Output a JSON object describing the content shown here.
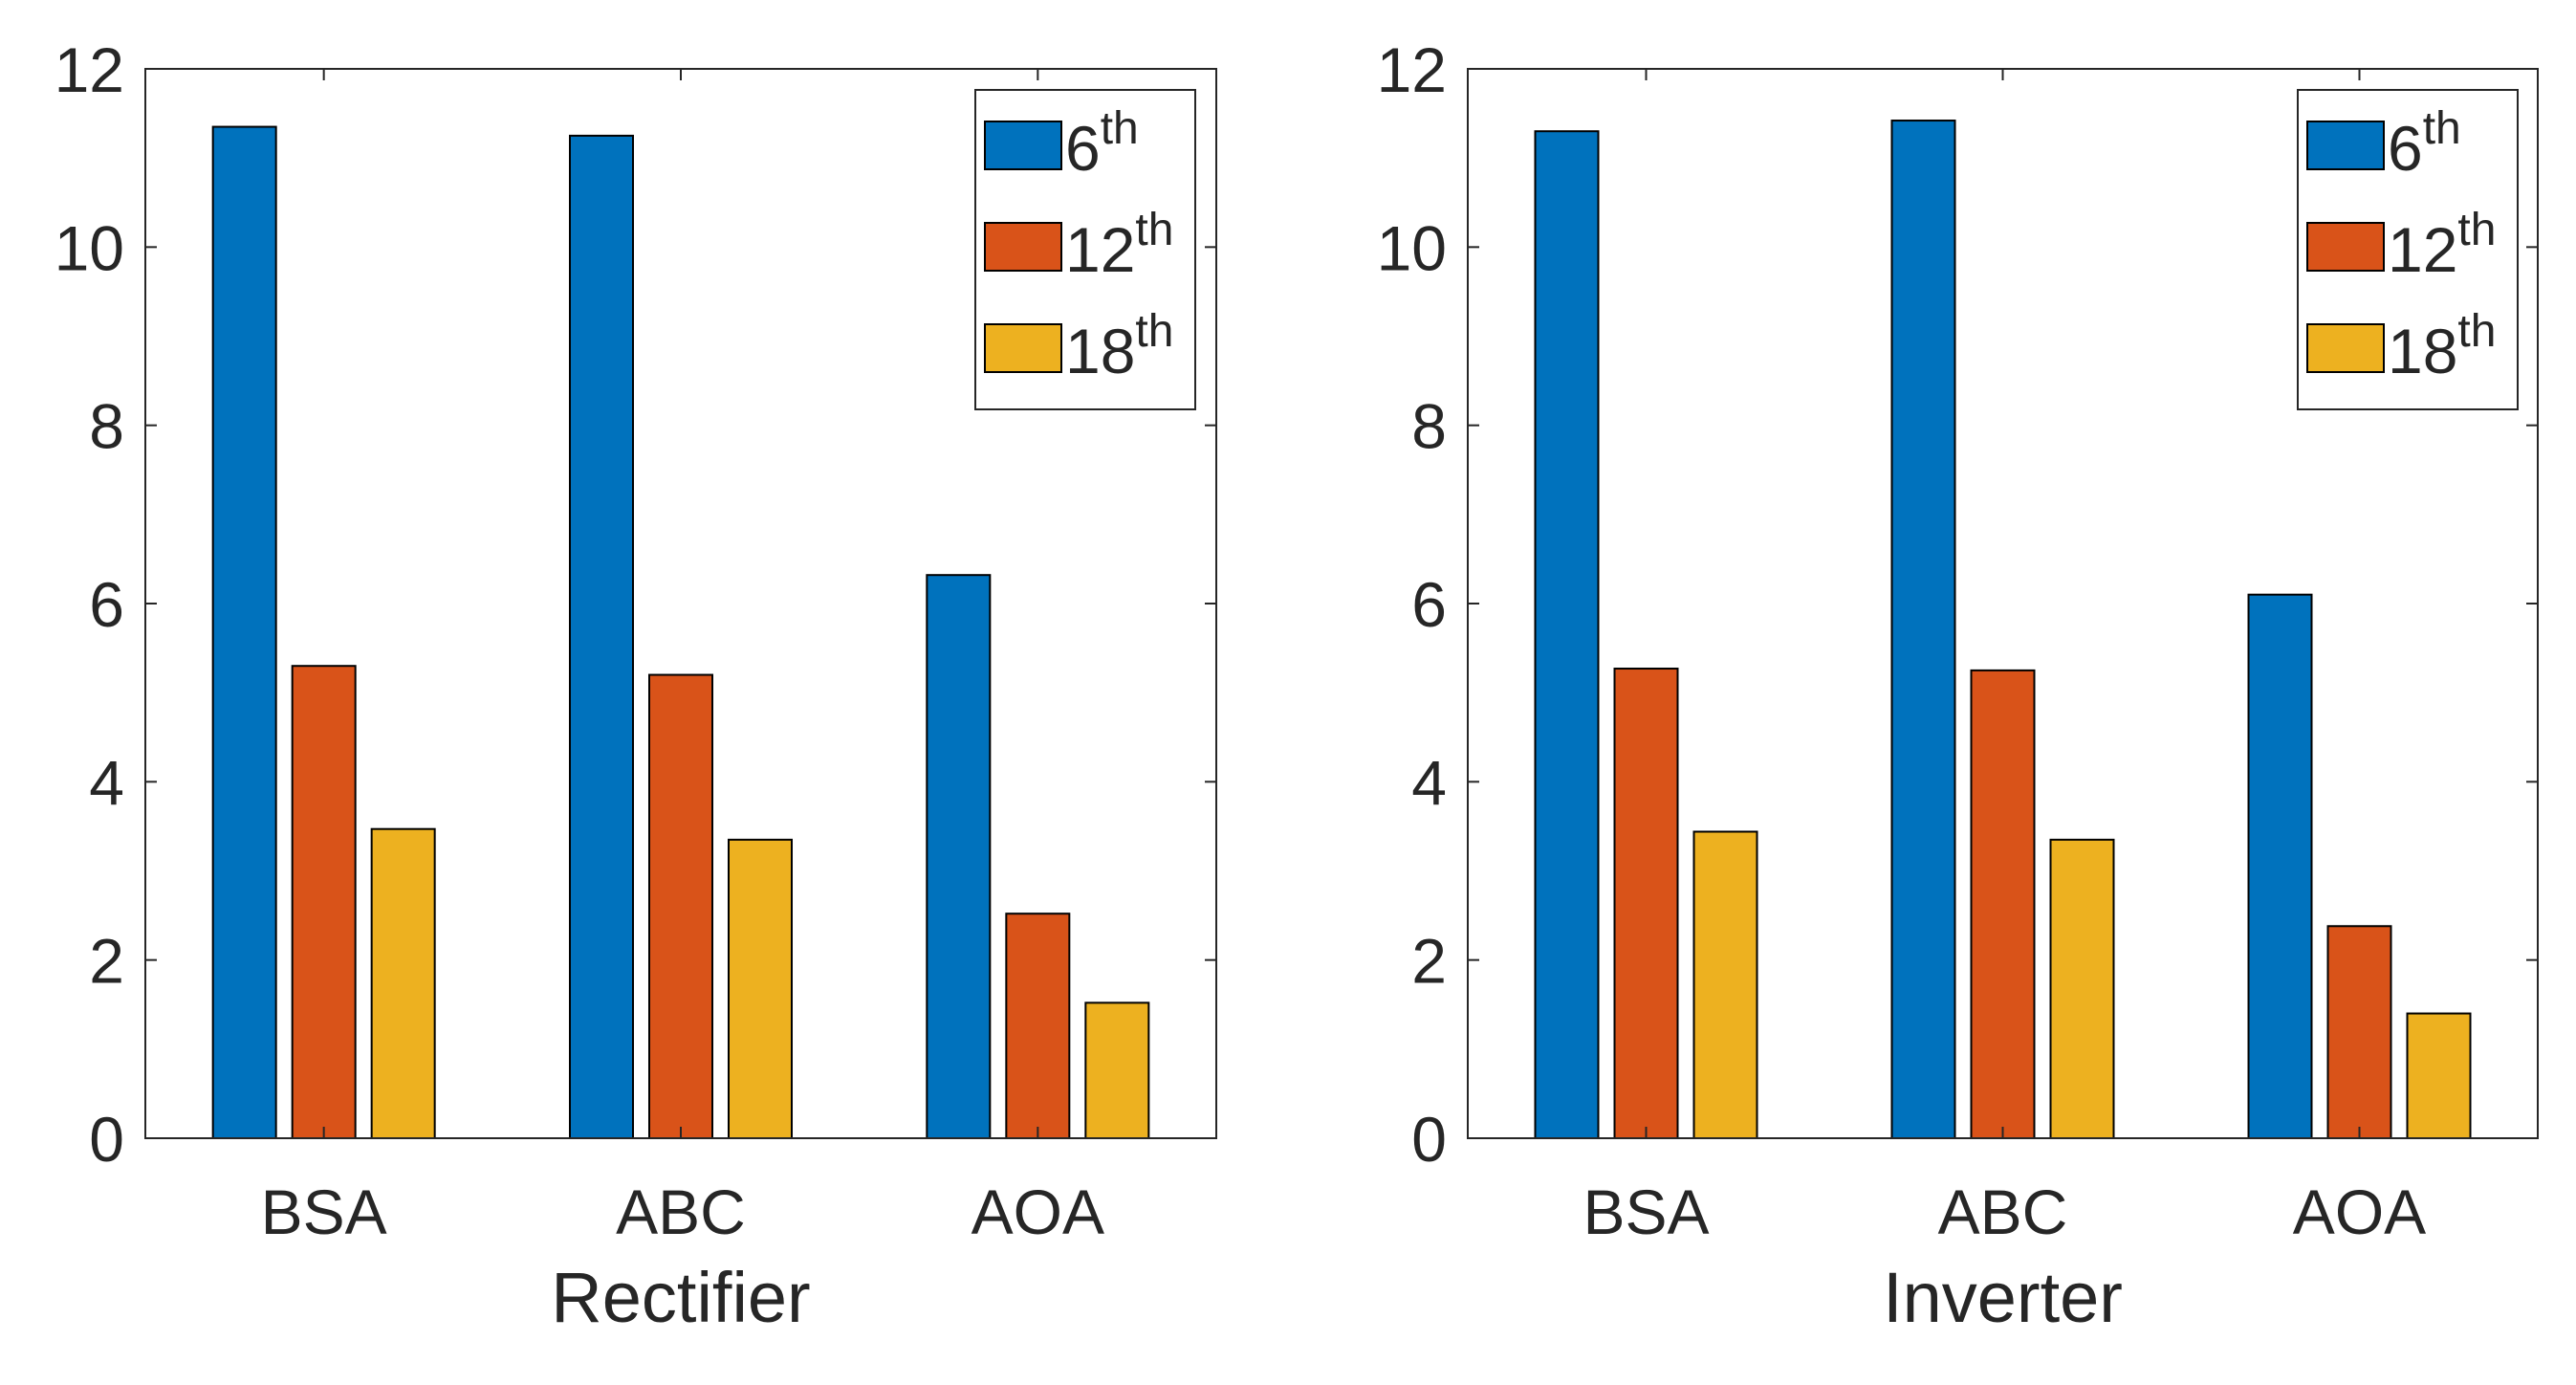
{
  "chart_data": [
    {
      "type": "bar",
      "title": "",
      "xlabel": "Rectifier",
      "ylabel": "",
      "categories": [
        "BSA",
        "ABC",
        "AOA"
      ],
      "ylim": [
        0,
        12
      ],
      "yticks": [
        "0",
        "2",
        "4",
        "6",
        "8",
        "10",
        "12"
      ],
      "grid": false,
      "legend_position": "top-right",
      "series": [
        {
          "name": "6th",
          "base": "6",
          "sup": "th",
          "color": "#0072BD",
          "values": [
            11.35,
            11.25,
            6.32
          ]
        },
        {
          "name": "12th",
          "base": "12",
          "sup": "th",
          "color": "#D95319",
          "values": [
            5.3,
            5.2,
            2.52
          ]
        },
        {
          "name": "18th",
          "base": "18",
          "sup": "th",
          "color": "#EDB120",
          "values": [
            3.47,
            3.35,
            1.52
          ]
        }
      ]
    },
    {
      "type": "bar",
      "title": "",
      "xlabel": "Inverter",
      "ylabel": "",
      "categories": [
        "BSA",
        "ABC",
        "AOA"
      ],
      "ylim": [
        0,
        12
      ],
      "yticks": [
        "0",
        "2",
        "4",
        "6",
        "8",
        "10",
        "12"
      ],
      "grid": false,
      "legend_position": "top-right",
      "series": [
        {
          "name": "6th",
          "base": "6",
          "sup": "th",
          "color": "#0072BD",
          "values": [
            11.3,
            11.42,
            6.1
          ]
        },
        {
          "name": "12th",
          "base": "12",
          "sup": "th",
          "color": "#D95319",
          "values": [
            5.27,
            5.25,
            2.38
          ]
        },
        {
          "name": "18th",
          "base": "18",
          "sup": "th",
          "color": "#EDB120",
          "values": [
            3.44,
            3.35,
            1.4
          ]
        }
      ]
    }
  ]
}
